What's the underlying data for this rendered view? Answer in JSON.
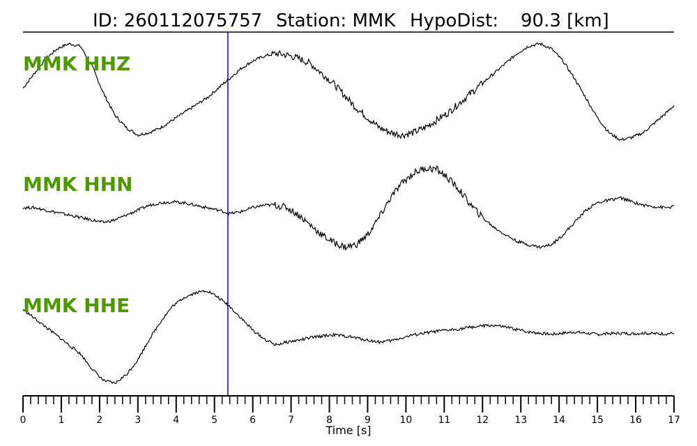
{
  "title": {
    "id_text": "ID: 260112075757",
    "station_text": "Station: MMK",
    "hypodist_text": "HypoDist:",
    "hypodist_value": "90.3 [km]"
  },
  "colors": {
    "label": "#4c9900",
    "trace": "#000000",
    "marker": "#0000cc"
  },
  "chart_data": {
    "type": "line",
    "xlabel": "Time [s]",
    "xlim": [
      0,
      17
    ],
    "x_ticks": [
      "0",
      "1",
      "2",
      "3",
      "4",
      "5",
      "6",
      "7",
      "8",
      "9",
      "10",
      "11",
      "12",
      "13",
      "14",
      "15",
      "16",
      "17"
    ],
    "minor_tick_step": 0.2,
    "marker_x": 5.35,
    "series": [
      {
        "name": "MMK HHZ",
        "x": [
          0,
          0.3,
          0.6,
          0.9,
          1.2,
          1.5,
          1.8,
          2.1,
          2.4,
          2.7,
          3.0,
          3.3,
          3.6,
          3.9,
          4.2,
          4.5,
          4.8,
          5.1,
          5.4,
          5.7,
          6.0,
          6.3,
          6.6,
          6.9,
          7.2,
          7.5,
          7.8,
          8.1,
          8.4,
          8.7,
          9.0,
          9.3,
          9.6,
          9.9,
          10.2,
          10.5,
          10.8,
          11.1,
          11.4,
          11.7,
          12.0,
          12.3,
          12.6,
          12.9,
          13.2,
          13.5,
          13.8,
          14.1,
          14.4,
          14.7,
          15.0,
          15.3,
          15.6,
          15.9,
          16.2,
          16.5,
          16.8,
          17.0
        ],
        "values": [
          0.05,
          0.35,
          0.65,
          0.85,
          0.95,
          0.9,
          0.5,
          -0.05,
          -0.5,
          -0.75,
          -0.9,
          -0.85,
          -0.75,
          -0.6,
          -0.45,
          -0.3,
          -0.15,
          0.05,
          0.25,
          0.45,
          0.6,
          0.7,
          0.75,
          0.72,
          0.65,
          0.55,
          0.35,
          0.15,
          -0.1,
          -0.35,
          -0.55,
          -0.75,
          -0.85,
          -0.9,
          -0.85,
          -0.75,
          -0.6,
          -0.45,
          -0.25,
          -0.05,
          0.15,
          0.35,
          0.55,
          0.75,
          0.9,
          0.95,
          0.85,
          0.6,
          0.25,
          -0.15,
          -0.55,
          -0.85,
          -1.0,
          -0.95,
          -0.85,
          -0.65,
          -0.45,
          -0.3
        ],
        "ylim": [
          -1.2,
          1.2
        ]
      },
      {
        "name": "MMK HHN",
        "x": [
          0,
          0.3,
          0.6,
          0.9,
          1.2,
          1.5,
          1.8,
          2.1,
          2.4,
          2.7,
          3.0,
          3.3,
          3.6,
          3.9,
          4.2,
          4.5,
          4.8,
          5.1,
          5.4,
          5.7,
          6.0,
          6.3,
          6.6,
          6.9,
          7.2,
          7.5,
          7.8,
          8.1,
          8.4,
          8.7,
          9.0,
          9.3,
          9.6,
          9.9,
          10.2,
          10.5,
          10.8,
          11.1,
          11.4,
          11.7,
          12.0,
          12.3,
          12.6,
          12.9,
          13.2,
          13.5,
          13.8,
          14.1,
          14.4,
          14.7,
          15.0,
          15.3,
          15.6,
          15.9,
          16.2,
          16.5,
          16.8,
          17.0
        ],
        "values": [
          0.0,
          0.0,
          -0.05,
          -0.1,
          -0.15,
          -0.2,
          -0.25,
          -0.3,
          -0.25,
          -0.15,
          -0.05,
          0.05,
          0.1,
          0.12,
          0.1,
          0.05,
          0.0,
          -0.05,
          -0.12,
          -0.08,
          0.0,
          0.05,
          0.05,
          0.0,
          -0.15,
          -0.35,
          -0.55,
          -0.7,
          -0.8,
          -0.75,
          -0.55,
          -0.2,
          0.2,
          0.5,
          0.7,
          0.8,
          0.78,
          0.6,
          0.35,
          0.05,
          -0.2,
          -0.4,
          -0.55,
          -0.68,
          -0.75,
          -0.8,
          -0.75,
          -0.55,
          -0.3,
          -0.05,
          0.1,
          0.15,
          0.2,
          0.12,
          0.05,
          0.02,
          0.0,
          0.02
        ],
        "ylim": [
          -1.2,
          1.2
        ]
      },
      {
        "name": "MMK HHE",
        "x": [
          0,
          0.3,
          0.6,
          0.9,
          1.2,
          1.5,
          1.8,
          2.1,
          2.4,
          2.7,
          3.0,
          3.3,
          3.6,
          3.9,
          4.2,
          4.5,
          4.8,
          5.1,
          5.4,
          5.7,
          6.0,
          6.3,
          6.6,
          6.9,
          7.2,
          7.5,
          7.8,
          8.1,
          8.4,
          8.7,
          9.0,
          9.3,
          9.6,
          9.9,
          10.2,
          10.5,
          10.8,
          11.1,
          11.4,
          11.7,
          12.0,
          12.3,
          12.6,
          12.9,
          13.2,
          13.5,
          13.8,
          14.1,
          14.4,
          14.7,
          15.0,
          15.3,
          15.6,
          15.9,
          16.2,
          16.5,
          16.8,
          17.0
        ],
        "values": [
          0.4,
          0.25,
          0.1,
          -0.05,
          -0.2,
          -0.35,
          -0.6,
          -0.8,
          -0.85,
          -0.7,
          -0.45,
          -0.1,
          0.2,
          0.45,
          0.6,
          0.68,
          0.72,
          0.6,
          0.45,
          0.25,
          0.05,
          -0.1,
          -0.2,
          -0.15,
          -0.12,
          -0.08,
          -0.05,
          -0.03,
          -0.05,
          -0.08,
          -0.12,
          -0.15,
          -0.13,
          -0.08,
          -0.03,
          0.0,
          0.03,
          0.05,
          0.07,
          0.1,
          0.12,
          0.13,
          0.1,
          0.06,
          0.02,
          0.0,
          -0.02,
          0.0,
          0.02,
          0.0,
          -0.02,
          -0.01,
          0.0,
          -0.01,
          0.0,
          -0.01,
          -0.01,
          0.0
        ],
        "ylim": [
          -1.0,
          1.0
        ]
      }
    ]
  }
}
